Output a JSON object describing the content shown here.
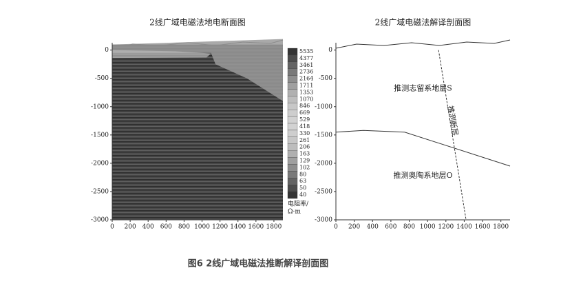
{
  "caption": "图6 2线广域电磁法推断解译剖面图",
  "chart_data": [
    {
      "type": "heatmap",
      "title": "2线广域电磁法地电断面图",
      "xlim": [
        0,
        1900
      ],
      "xticks": [
        0,
        200,
        400,
        600,
        800,
        1000,
        1200,
        1400,
        1600,
        1800
      ],
      "ylim": [
        -3000,
        130
      ],
      "yticks": [
        0,
        -500,
        -1000,
        -1500,
        -2000,
        -2500,
        -3000
      ],
      "colorbar": [
        5535,
        4377,
        3461,
        2736,
        2164,
        1711,
        1353,
        1070,
        846,
        669,
        529,
        418,
        330,
        261,
        206,
        163,
        129,
        102,
        80,
        63,
        50,
        40
      ],
      "colorbar_unit": [
        "电阻率/",
        "Ω·m"
      ]
    },
    {
      "type": "line",
      "title": "2线广域电磁法解译剖面图",
      "xlim": [
        0,
        1900
      ],
      "xticks": [
        0,
        200,
        400,
        600,
        800,
        1000,
        1200,
        1400,
        1600,
        1800
      ],
      "ylim": [
        -3000,
        130
      ],
      "yticks": [
        0,
        -500,
        -1000,
        -1500,
        -2000,
        -2500,
        -3000
      ],
      "series": [
        {
          "color": "#333333",
          "dashed": false,
          "x": [
            0,
            300,
            750,
            1900
          ],
          "values": [
            -1450,
            -1420,
            -1450,
            -2050
          ]
        },
        {
          "color": "#333333",
          "dashed": true,
          "x": [
            1120,
            1420
          ],
          "values": [
            0,
            -3000
          ]
        }
      ],
      "annotations": [
        "推测志留系地层S",
        "推测奥陶系地层O",
        "推测断层"
      ]
    }
  ]
}
